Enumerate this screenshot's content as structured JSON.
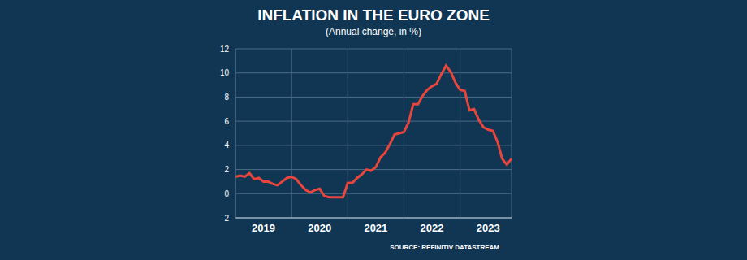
{
  "chart_data": {
    "type": "line",
    "title": "INFLATION IN THE EURO ZONE",
    "subtitle": "(Annual change, in %)",
    "source": "SOURCE: REFINITIV DATASTREAM",
    "categories": [
      null,
      null,
      null,
      null,
      null,
      null,
      "2019",
      null,
      null,
      null,
      null,
      null,
      null,
      null,
      null,
      null,
      null,
      null,
      "2020",
      null,
      null,
      null,
      null,
      null,
      null,
      null,
      null,
      null,
      null,
      null,
      "2021",
      null,
      null,
      null,
      null,
      null,
      null,
      null,
      null,
      null,
      null,
      null,
      "2022",
      null,
      null,
      null,
      null,
      null,
      null,
      null,
      null,
      null,
      null,
      null,
      "2023",
      null,
      null,
      null,
      null,
      null
    ],
    "values": [
      1.4,
      1.5,
      1.4,
      1.7,
      1.2,
      1.3,
      1.0,
      1.0,
      0.8,
      0.7,
      1.0,
      1.3,
      1.4,
      1.2,
      0.7,
      0.3,
      0.1,
      0.3,
      0.4,
      -0.2,
      -0.3,
      -0.3,
      -0.3,
      -0.3,
      0.9,
      0.9,
      1.3,
      1.6,
      2.0,
      1.9,
      2.2,
      3.0,
      3.4,
      4.1,
      4.9,
      5.0,
      5.1,
      5.9,
      7.4,
      7.4,
      8.1,
      8.6,
      8.9,
      9.1,
      9.9,
      10.6,
      10.1,
      9.2,
      8.6,
      8.5,
      6.9,
      7.0,
      6.1,
      5.5,
      5.3,
      5.2,
      4.3,
      2.9,
      2.4,
      2.9
    ],
    "color": "#e8453c",
    "ylim": [
      -2,
      12
    ],
    "yticks": [
      -2,
      0,
      2,
      4,
      6,
      8,
      10,
      12
    ],
    "grid": true
  }
}
